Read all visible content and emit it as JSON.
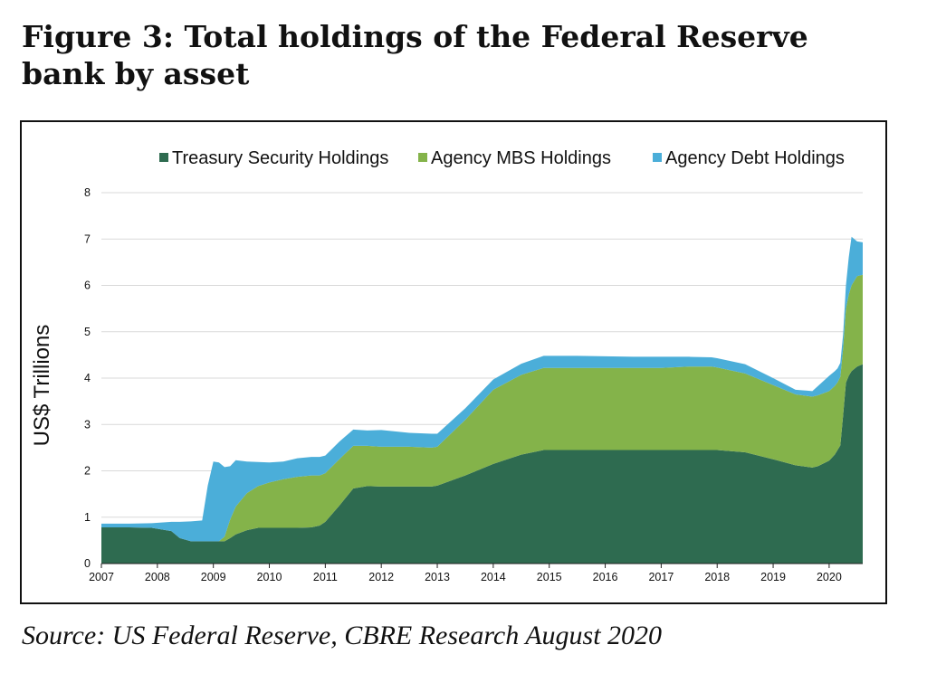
{
  "figure": {
    "title": "Figure 3: Total holdings of the Federal Reserve bank by asset",
    "source": "Source: US Federal Reserve, CBRE Research August 2020"
  },
  "chart_data": {
    "type": "area",
    "stacked": true,
    "title": "",
    "xlabel": "",
    "ylabel": "US$ Trillions",
    "xlim": [
      2007,
      2020.6
    ],
    "ylim": [
      0,
      8
    ],
    "x_ticks": [
      "2007",
      "2008",
      "2009",
      "2010",
      "2011",
      "2012",
      "2013",
      "2014",
      "2015",
      "2016",
      "2017",
      "2018",
      "2019",
      "2020"
    ],
    "y_ticks": [
      "0",
      "1",
      "2",
      "3",
      "4",
      "5",
      "6",
      "7",
      "8"
    ],
    "grid": "horizontal",
    "legend": {
      "position": "top"
    },
    "x": [
      2007.0,
      2007.5,
      2007.9,
      2008.25,
      2008.4,
      2008.6,
      2008.8,
      2008.9,
      2009.0,
      2009.1,
      2009.2,
      2009.3,
      2009.4,
      2009.6,
      2009.8,
      2010.0,
      2010.25,
      2010.5,
      2010.75,
      2010.9,
      2011.0,
      2011.25,
      2011.5,
      2011.75,
      2012.0,
      2012.5,
      2012.9,
      2013.0,
      2013.5,
      2014.0,
      2014.5,
      2014.9,
      2015.5,
      2016.0,
      2016.5,
      2017.0,
      2017.5,
      2017.9,
      2018.0,
      2018.5,
      2019.0,
      2019.4,
      2019.7,
      2019.8,
      2020.0,
      2020.1,
      2020.15,
      2020.2,
      2020.25,
      2020.3,
      2020.35,
      2020.4,
      2020.5,
      2020.6
    ],
    "series": [
      {
        "name": "Treasury Security Holdings",
        "color": "#2e6b50",
        "values": [
          0.78,
          0.78,
          0.77,
          0.7,
          0.55,
          0.48,
          0.48,
          0.48,
          0.48,
          0.48,
          0.48,
          0.55,
          0.63,
          0.72,
          0.77,
          0.77,
          0.77,
          0.77,
          0.78,
          0.82,
          0.9,
          1.25,
          1.62,
          1.67,
          1.66,
          1.66,
          1.66,
          1.68,
          1.9,
          2.15,
          2.35,
          2.45,
          2.45,
          2.45,
          2.45,
          2.45,
          2.45,
          2.45,
          2.45,
          2.4,
          2.25,
          2.12,
          2.07,
          2.1,
          2.22,
          2.35,
          2.45,
          2.55,
          3.2,
          3.9,
          4.05,
          4.15,
          4.25,
          4.3
        ]
      },
      {
        "name": "Agency MBS Holdings",
        "color": "#84b34a",
        "values": [
          0,
          0,
          0,
          0,
          0,
          0,
          0,
          0,
          0,
          0,
          0.1,
          0.4,
          0.6,
          0.8,
          0.9,
          0.98,
          1.05,
          1.1,
          1.12,
          1.08,
          1.05,
          1.0,
          0.92,
          0.87,
          0.86,
          0.86,
          0.84,
          0.84,
          1.2,
          1.6,
          1.72,
          1.77,
          1.77,
          1.77,
          1.77,
          1.77,
          1.8,
          1.8,
          1.78,
          1.7,
          1.6,
          1.53,
          1.53,
          1.53,
          1.5,
          1.48,
          1.46,
          1.48,
          1.45,
          1.6,
          1.75,
          1.85,
          1.95,
          1.93
        ]
      },
      {
        "name": "Agency Debt Holdings",
        "color": "#4baed9",
        "values": [
          0.08,
          0.08,
          0.1,
          0.2,
          0.35,
          0.43,
          0.45,
          1.2,
          1.72,
          1.7,
          1.5,
          1.15,
          1.0,
          0.68,
          0.52,
          0.43,
          0.38,
          0.4,
          0.4,
          0.4,
          0.38,
          0.38,
          0.35,
          0.33,
          0.36,
          0.3,
          0.3,
          0.28,
          0.25,
          0.22,
          0.24,
          0.26,
          0.26,
          0.25,
          0.24,
          0.24,
          0.21,
          0.2,
          0.2,
          0.2,
          0.15,
          0.1,
          0.12,
          0.2,
          0.33,
          0.32,
          0.3,
          0.3,
          0.3,
          0.5,
          0.8,
          1.05,
          0.75,
          0.7
        ]
      }
    ]
  }
}
